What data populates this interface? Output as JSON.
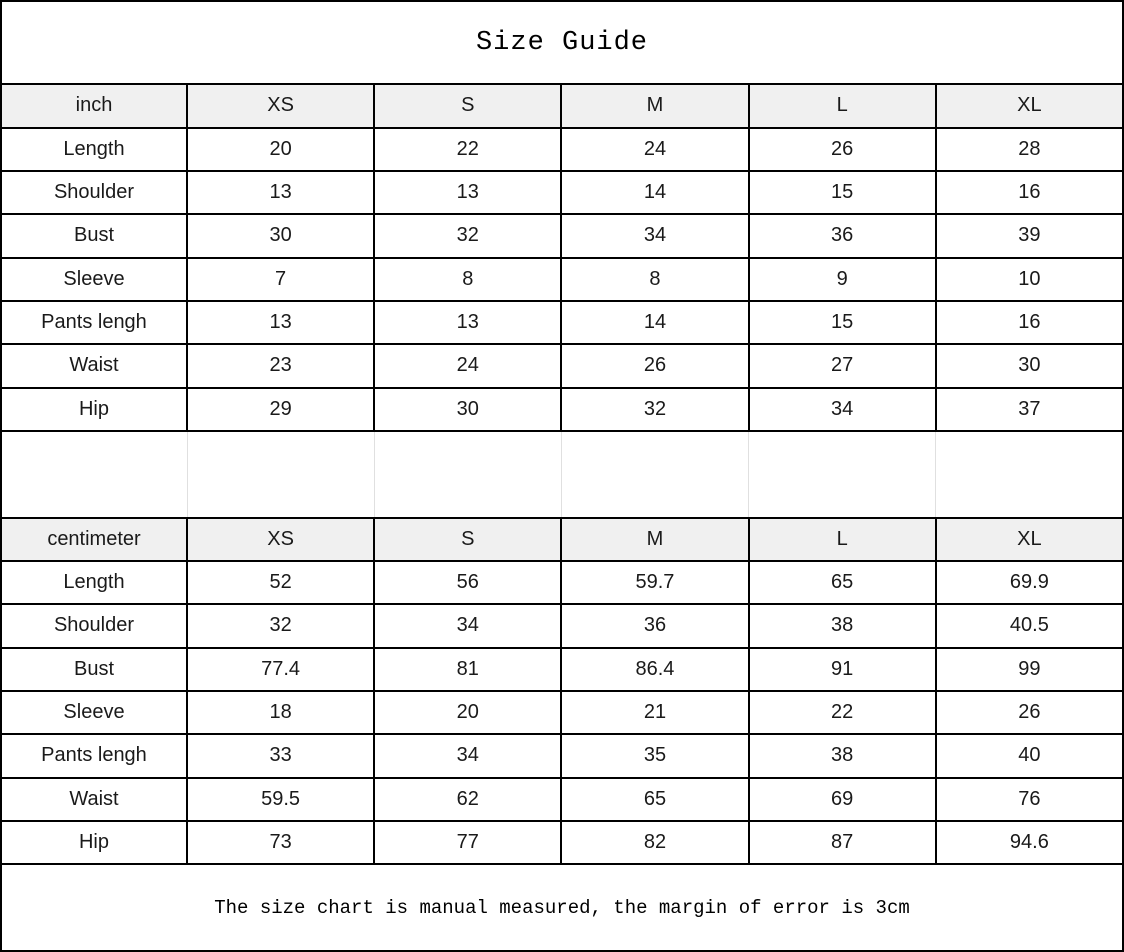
{
  "page": {
    "title": "Size Guide",
    "footer_note": "The size chart is manual measured, the margin of error is 3cm"
  },
  "sizes": [
    "XS",
    "S",
    "M",
    "L",
    "XL"
  ],
  "tables": [
    {
      "unit_label": "inch",
      "rows": [
        {
          "label": "Length",
          "values": [
            "20",
            "22",
            "24",
            "26",
            "28"
          ]
        },
        {
          "label": "Shoulder",
          "values": [
            "13",
            "13",
            "14",
            "15",
            "16"
          ]
        },
        {
          "label": "Bust",
          "values": [
            "30",
            "32",
            "34",
            "36",
            "39"
          ]
        },
        {
          "label": "Sleeve",
          "values": [
            "7",
            "8",
            "8",
            "9",
            "10"
          ]
        },
        {
          "label": "Pants lengh",
          "values": [
            "13",
            "13",
            "14",
            "15",
            "16"
          ]
        },
        {
          "label": "Waist",
          "values": [
            "23",
            "24",
            "26",
            "27",
            "30"
          ]
        },
        {
          "label": "Hip",
          "values": [
            "29",
            "30",
            "32",
            "34",
            "37"
          ]
        }
      ]
    },
    {
      "unit_label": "centimeter",
      "rows": [
        {
          "label": "Length",
          "values": [
            "52",
            "56",
            "59.7",
            "65",
            "69.9"
          ]
        },
        {
          "label": "Shoulder",
          "values": [
            "32",
            "34",
            "36",
            "38",
            "40.5"
          ]
        },
        {
          "label": "Bust",
          "values": [
            "77.4",
            "81",
            "86.4",
            "91",
            "99"
          ]
        },
        {
          "label": "Sleeve",
          "values": [
            "18",
            "20",
            "21",
            "22",
            "26"
          ]
        },
        {
          "label": "Pants lengh",
          "values": [
            "33",
            "34",
            "35",
            "38",
            "40"
          ]
        },
        {
          "label": "Waist",
          "values": [
            "59.5",
            "62",
            "65",
            "69",
            "76"
          ]
        },
        {
          "label": "Hip",
          "values": [
            "73",
            "77",
            "82",
            "87",
            "94.6"
          ]
        }
      ]
    }
  ],
  "colors": {
    "header_bg": "#f0f0f0",
    "border": "#000000",
    "spacer_line": "#e0e0e0",
    "text": "#1a1a1a"
  }
}
